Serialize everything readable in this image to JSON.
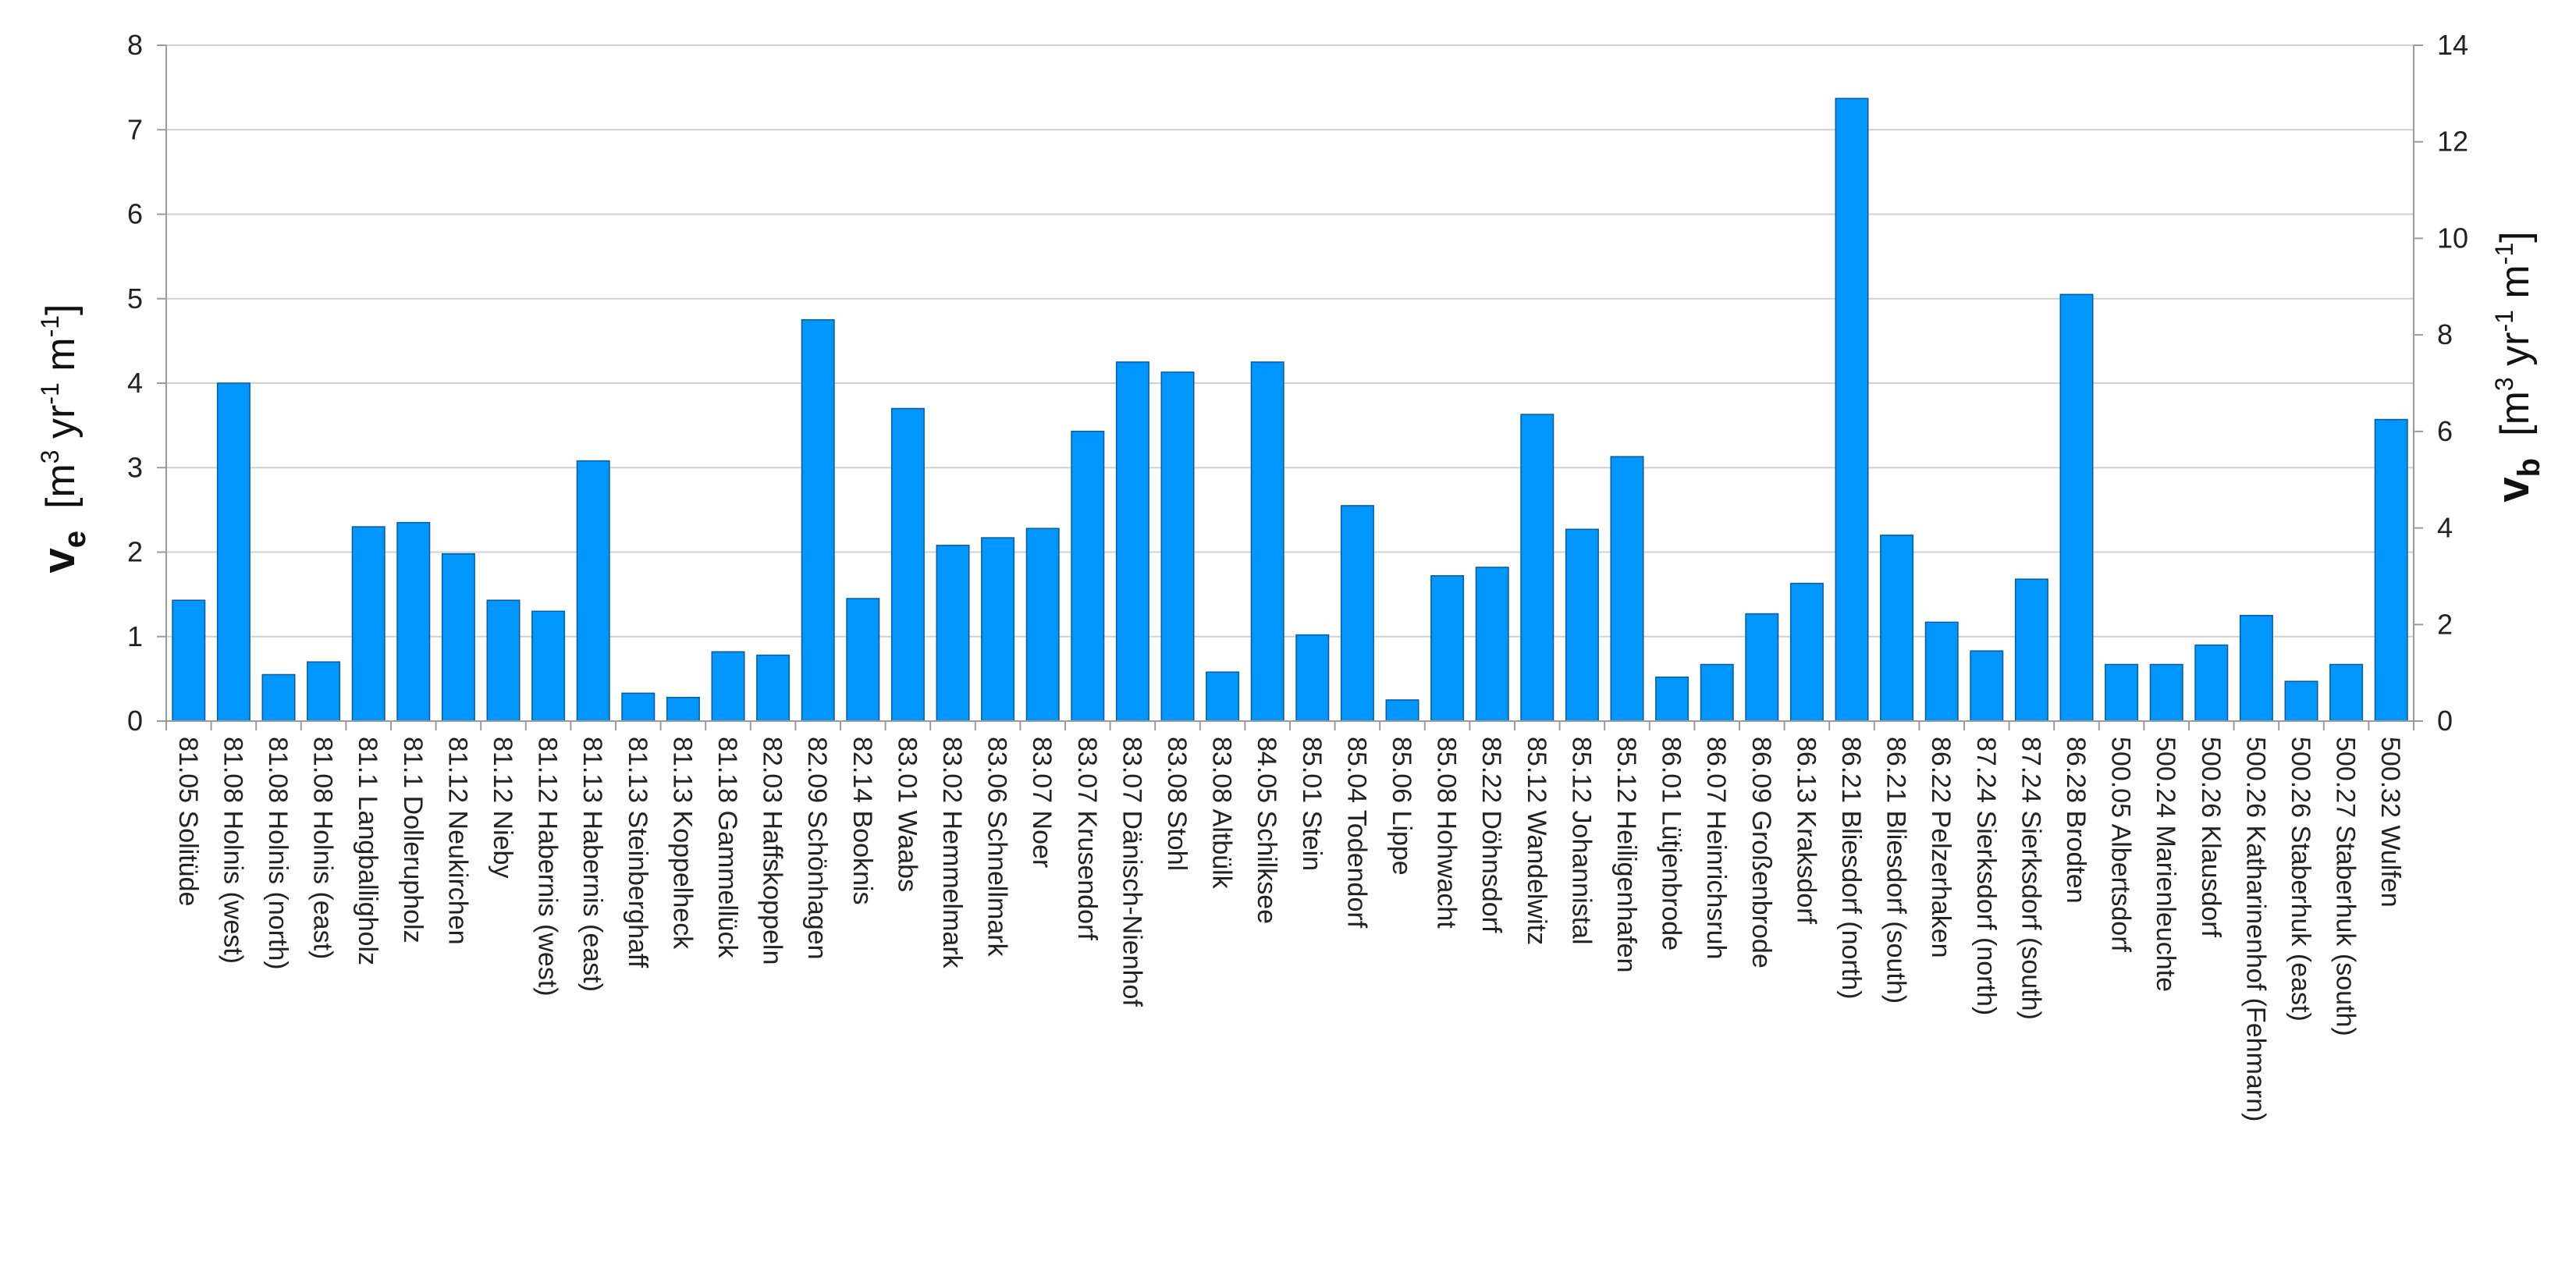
{
  "chart_data": {
    "type": "bar",
    "title": "",
    "xlabel": "",
    "ylabel_left": {
      "main": "v",
      "sub": "e",
      "unit_prefix": "[m",
      "sup1": "3",
      "mid": " yr",
      "sup2": "-1",
      "mid2": " m",
      "sup3": "-1",
      "suffix": "]"
    },
    "ylabel_right": {
      "main": "v",
      "sub": "b",
      "unit_prefix": "[m",
      "sup1": "3",
      "mid": " yr",
      "sup2": "-1",
      "mid2": " m",
      "sup3": "-1",
      "suffix": "]"
    },
    "ylim": [
      0,
      8
    ],
    "yticks": [
      "0",
      "1",
      "2",
      "3",
      "4",
      "5",
      "6",
      "7",
      "8"
    ],
    "ylim_right": [
      0,
      14
    ],
    "yticks_right": [
      "0",
      "2",
      "4",
      "6",
      "8",
      "10",
      "12",
      "14"
    ],
    "grid": true,
    "series_color": "#0096ff",
    "categories": [
      "81.05 Solitüde",
      "81.08 Holnis  (west)",
      "81.08 Holnis (north)",
      "81.08 Holnis (east)",
      "81.1 Langballigholz",
      "81.1 Dollerupholz",
      "81.12 Neukirchen",
      "81.12 Nieby",
      "81.12 Habernis (west)",
      "81.13 Habernis (east)",
      "81.13 Steinberghaff",
      "81.13 Koppelheck",
      "81.18 Gammellück",
      "82.03 Haffskoppeln",
      "82.09 Schönhagen",
      "82.14 Booknis",
      "83.01 Waabs",
      "83.02 Hemmelmark",
      "83.06 Schnellmark",
      "83.07 Noer",
      "83.07 Krusendorf",
      "83.07 Dänisch-Nienhof",
      "83.08 Stohl",
      "83.08 Altbülk",
      "84.05 Schilksee",
      "85.01 Stein",
      "85.04 Todendorf",
      "85.06 Lippe",
      "85.08 Hohwacht",
      "85.22 Döhnsdorf",
      "85.12 Wandelwitz",
      "85.12 Johannistal",
      "85.12 Heiligenhafen",
      "86.01 Lütjenbrode",
      "86.07 Heinrichsruh",
      "86.09 Großenbrode",
      "86.13 Kraksdorf",
      "86.21 Bliesdorf (north)",
      "86.21 Bliesdorf  (south)",
      "86.22 Pelzerhaken",
      "87.24 Sierksdorf (north)",
      "87.24 Sierksdorf (south)",
      "86.28 Brodten",
      "500.05 Albertsdorf",
      "500.24 Marienleuchte",
      "500.26 Klausdorf",
      "500.26 Katharinenhof (Fehmarn)",
      "500.26 Staberhuk (east)",
      "500.27 Staberhuk (south)",
      "500.32 Wulfen"
    ],
    "values": [
      1.43,
      4.0,
      0.55,
      0.7,
      2.3,
      2.35,
      1.98,
      1.43,
      1.3,
      3.08,
      0.33,
      0.28,
      0.82,
      0.78,
      4.75,
      1.45,
      3.7,
      2.08,
      2.17,
      2.28,
      3.43,
      4.25,
      4.13,
      0.58,
      4.25,
      1.02,
      2.55,
      0.25,
      1.72,
      1.82,
      3.63,
      2.27,
      3.13,
      0.52,
      0.67,
      1.27,
      1.63,
      7.37,
      2.2,
      1.17,
      0.83,
      1.68,
      5.05,
      0.67,
      0.67,
      0.9,
      1.25,
      0.47,
      0.67,
      3.57
    ]
  }
}
